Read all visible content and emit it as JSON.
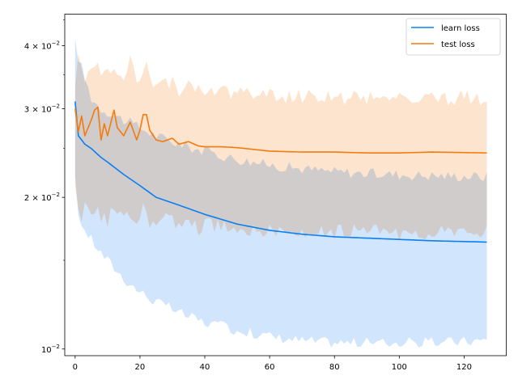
{
  "chart_data": {
    "type": "line",
    "title": "",
    "xlabel": "",
    "ylabel": "",
    "x_scale": "linear",
    "y_scale": "log",
    "xlim": [
      -3.2,
      133.0
    ],
    "ylim": [
      0.0097,
      0.0462
    ],
    "grid": false,
    "legend_position": "top-right",
    "x_ticks": [
      {
        "value": 0,
        "label": "0"
      },
      {
        "value": 20,
        "label": "20"
      },
      {
        "value": 40,
        "label": "40"
      },
      {
        "value": 60,
        "label": "60"
      },
      {
        "value": 80,
        "label": "80"
      },
      {
        "value": 100,
        "label": "100"
      },
      {
        "value": 120,
        "label": "120"
      }
    ],
    "y_ticks": [
      {
        "value": 0.01,
        "base": "10",
        "exp": "−2"
      },
      {
        "value": 0.02,
        "base": "2 × 10",
        "exp": "−2"
      },
      {
        "value": 0.03,
        "base": "3 × 10",
        "exp": "−2"
      },
      {
        "value": 0.04,
        "base": "4 × 10",
        "exp": "−2"
      }
    ],
    "series": [
      {
        "name": "learn loss",
        "color": "#1f77b4",
        "line_color": "#0a7ef2",
        "band_color": "#c9e1fb",
        "keypoints": [
          [
            0,
            0.031,
            0.0405,
            0.0216
          ],
          [
            1,
            0.0265,
            0.038,
            0.0185
          ],
          [
            3,
            0.0255,
            0.0345,
            0.0172
          ],
          [
            5,
            0.025,
            0.0315,
            0.0165
          ],
          [
            8,
            0.024,
            0.03,
            0.0155
          ],
          [
            10,
            0.0235,
            0.0296,
            0.015
          ],
          [
            15,
            0.0222,
            0.0285,
            0.0138
          ],
          [
            20,
            0.0211,
            0.0275,
            0.013
          ],
          [
            25,
            0.02,
            0.0265,
            0.0124
          ],
          [
            30,
            0.0195,
            0.0258,
            0.012
          ],
          [
            35,
            0.019,
            0.0252,
            0.0116
          ],
          [
            40,
            0.0185,
            0.0247,
            0.0113
          ],
          [
            50,
            0.0177,
            0.0238,
            0.0109
          ],
          [
            60,
            0.0172,
            0.0232,
            0.0106
          ],
          [
            70,
            0.0169,
            0.0228,
            0.0104
          ],
          [
            80,
            0.0167,
            0.0225,
            0.0103
          ],
          [
            90,
            0.0166,
            0.0223,
            0.0103
          ],
          [
            100,
            0.0165,
            0.0222,
            0.0103
          ],
          [
            110,
            0.0164,
            0.0221,
            0.0103
          ],
          [
            127,
            0.0163,
            0.022,
            0.0104
          ]
        ]
      },
      {
        "name": "test loss",
        "color": "#ff7f0e",
        "line_color": "#f57a0c",
        "band_color": "#fddfc6",
        "keypoints": [
          [
            0,
            0.03,
            0.0336,
            0.0218
          ],
          [
            1,
            0.027,
            0.038,
            0.0195
          ],
          [
            2,
            0.029,
            0.035,
            0.018
          ],
          [
            3,
            0.0265,
            0.034,
            0.0195
          ],
          [
            5,
            0.0285,
            0.037,
            0.0185
          ],
          [
            6,
            0.0298,
            0.0375,
            0.019
          ],
          [
            7,
            0.0302,
            0.0365,
            0.0195
          ],
          [
            8,
            0.026,
            0.036,
            0.0178
          ],
          [
            9,
            0.028,
            0.0355,
            0.019
          ],
          [
            10,
            0.0265,
            0.036,
            0.0175
          ],
          [
            12,
            0.0298,
            0.0365,
            0.0195
          ],
          [
            13,
            0.0275,
            0.0355,
            0.0185
          ],
          [
            15,
            0.0265,
            0.034,
            0.0178
          ],
          [
            17,
            0.0282,
            0.0375,
            0.0188
          ],
          [
            19,
            0.026,
            0.0345,
            0.0175
          ],
          [
            20,
            0.0272,
            0.035,
            0.0183
          ],
          [
            21,
            0.0292,
            0.0365,
            0.0195
          ],
          [
            22,
            0.0292,
            0.036,
            0.0188
          ],
          [
            23,
            0.0272,
            0.034,
            0.0175
          ],
          [
            25,
            0.026,
            0.0345,
            0.0178
          ],
          [
            27,
            0.0258,
            0.0335,
            0.0183
          ],
          [
            30,
            0.0262,
            0.034,
            0.018
          ],
          [
            32,
            0.0255,
            0.0325,
            0.0175
          ],
          [
            35,
            0.0258,
            0.033,
            0.0178
          ],
          [
            38,
            0.0253,
            0.0325,
            0.0174
          ],
          [
            40,
            0.0252,
            0.0328,
            0.0176
          ],
          [
            45,
            0.0252,
            0.0326,
            0.0175
          ],
          [
            50,
            0.0251,
            0.0324,
            0.0174
          ],
          [
            55,
            0.0249,
            0.032,
            0.0173
          ],
          [
            60,
            0.0247,
            0.0318,
            0.0172
          ],
          [
            70,
            0.0246,
            0.0317,
            0.0171
          ],
          [
            80,
            0.0246,
            0.0316,
            0.0171
          ],
          [
            90,
            0.0245,
            0.0316,
            0.0171
          ],
          [
            100,
            0.0245,
            0.0315,
            0.017
          ],
          [
            110,
            0.0246,
            0.0315,
            0.017
          ],
          [
            127,
            0.0245,
            0.0316,
            0.017
          ]
        ]
      }
    ]
  }
}
